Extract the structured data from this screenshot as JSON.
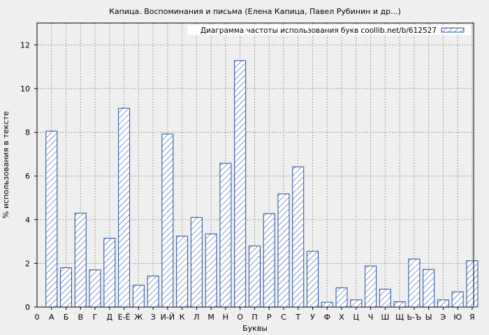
{
  "chart_data": {
    "type": "bar",
    "title": "Капица. Воспоминания и письма (Елена Капица, Павел Рубинин и др...)",
    "xlabel": "Буквы",
    "ylabel": "% использования в тексте",
    "legend": "Диаграмма частоты использования букв coollib.net/b/612527",
    "legend_position": "top-right",
    "grid": true,
    "ylim": [
      0,
      13
    ],
    "yticks": [
      0,
      2,
      4,
      6,
      8,
      10,
      12
    ],
    "x_origin_label": "0",
    "categories": [
      "А",
      "Б",
      "В",
      "Г",
      "Д",
      "Е-Ё",
      "Ж",
      "З",
      "И-Й",
      "К",
      "Л",
      "М",
      "Н",
      "О",
      "П",
      "Р",
      "С",
      "Т",
      "У",
      "Ф",
      "Х",
      "Ц",
      "Ч",
      "Ш",
      "Щ",
      "Ь-Ъ",
      "Ы",
      "Э",
      "Ю",
      "Я"
    ],
    "values": [
      8.05,
      1.8,
      4.3,
      1.7,
      3.15,
      9.1,
      1.0,
      1.42,
      7.92,
      3.25,
      4.1,
      3.35,
      6.58,
      11.28,
      2.8,
      4.28,
      5.18,
      6.42,
      2.55,
      0.22,
      0.88,
      0.33,
      1.88,
      0.82,
      0.24,
      2.2,
      1.72,
      0.33,
      0.7,
      2.12
    ],
    "colors": {
      "bar_stroke": "#1f4f9f",
      "hatch": "#1f4f9f",
      "bar_fill": "#ffffff",
      "background": "#efefef",
      "plot_bg": "#efefef",
      "grid": "#9a9a9a"
    }
  }
}
